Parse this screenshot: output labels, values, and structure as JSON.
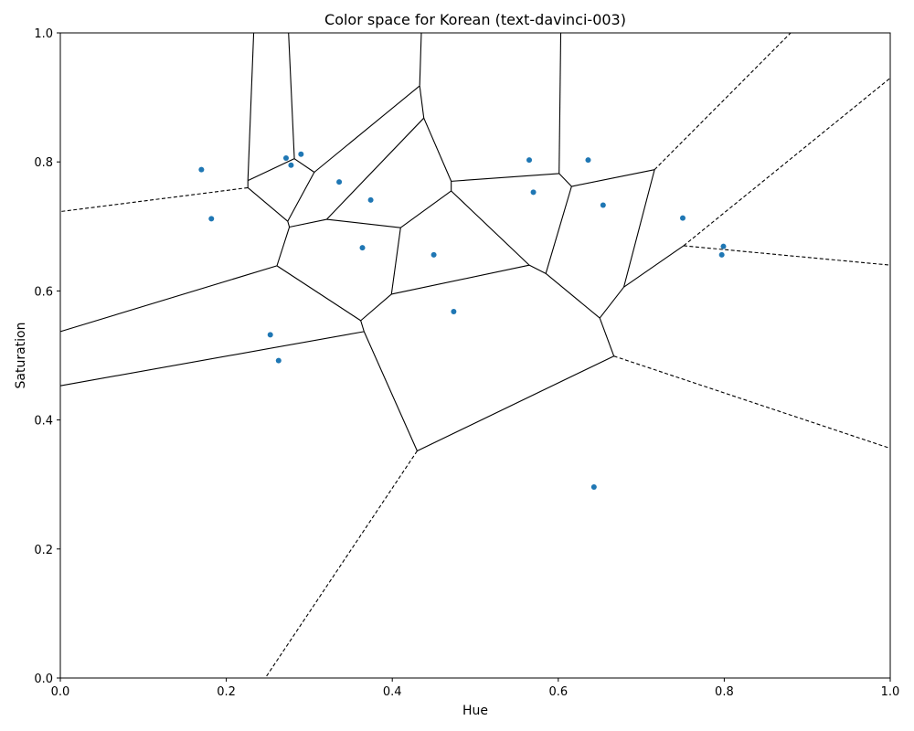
{
  "chart_data": {
    "type": "scatter",
    "title": "Color space for Korean (text-davinci-003)",
    "xlabel": "Hue",
    "ylabel": "Saturation",
    "xlim": [
      0.0,
      1.0
    ],
    "ylim": [
      0.0,
      1.0
    ],
    "xticks": [
      "0.0",
      "0.2",
      "0.4",
      "0.6",
      "0.8",
      "1.0"
    ],
    "yticks": [
      "0.0",
      "0.2",
      "0.4",
      "0.6",
      "0.8",
      "1.0"
    ],
    "grid": false,
    "legend": "none",
    "colors": {
      "points": "#1f77b4",
      "edges": "#000000"
    },
    "series": [
      {
        "x": [
          0.17,
          0.182,
          0.272,
          0.278,
          0.29,
          0.336,
          0.374,
          0.364,
          0.45,
          0.474,
          0.253,
          0.263,
          0.565,
          0.57,
          0.636,
          0.654,
          0.75,
          0.797,
          0.799,
          0.643
        ],
        "y": [
          0.788,
          0.712,
          0.806,
          0.795,
          0.812,
          0.769,
          0.741,
          0.667,
          0.656,
          0.568,
          0.532,
          0.492,
          0.803,
          0.753,
          0.803,
          0.733,
          0.713,
          0.656,
          0.669,
          0.296
        ]
      }
    ],
    "voronoi_edges": {
      "solid": [
        [
          [
            0.233,
            1.0
          ],
          [
            0.226,
            0.771
          ]
        ],
        [
          [
            0.275,
            1.0
          ],
          [
            0.282,
            0.805
          ]
        ],
        [
          [
            0.226,
            0.771
          ],
          [
            0.282,
            0.805
          ]
        ],
        [
          [
            0.226,
            0.771
          ],
          [
            0.226,
            0.76
          ]
        ],
        [
          [
            0.226,
            0.76
          ],
          [
            0.274,
            0.708
          ]
        ],
        [
          [
            0.282,
            0.805
          ],
          [
            0.306,
            0.784
          ]
        ],
        [
          [
            0.306,
            0.784
          ],
          [
            0.433,
            0.918
          ]
        ],
        [
          [
            0.306,
            0.784
          ],
          [
            0.274,
            0.708
          ]
        ],
        [
          [
            0.274,
            0.708
          ],
          [
            0.276,
            0.699
          ]
        ],
        [
          [
            0.276,
            0.699
          ],
          [
            0.321,
            0.711
          ]
        ],
        [
          [
            0.276,
            0.699
          ],
          [
            0.261,
            0.639
          ]
        ],
        [
          [
            0.321,
            0.711
          ],
          [
            0.438,
            0.868
          ]
        ],
        [
          [
            0.321,
            0.711
          ],
          [
            0.41,
            0.698
          ]
        ],
        [
          [
            0.433,
            0.918
          ],
          [
            0.435,
            1.0
          ]
        ],
        [
          [
            0.433,
            0.918
          ],
          [
            0.438,
            0.868
          ]
        ],
        [
          [
            0.438,
            0.868
          ],
          [
            0.471,
            0.77
          ]
        ],
        [
          [
            0.471,
            0.77
          ],
          [
            0.471,
            0.755
          ]
        ],
        [
          [
            0.471,
            0.77
          ],
          [
            0.601,
            0.782
          ]
        ],
        [
          [
            0.471,
            0.755
          ],
          [
            0.41,
            0.698
          ]
        ],
        [
          [
            0.471,
            0.755
          ],
          [
            0.565,
            0.64
          ]
        ],
        [
          [
            0.41,
            0.698
          ],
          [
            0.399,
            0.595
          ]
        ],
        [
          [
            0.399,
            0.595
          ],
          [
            0.565,
            0.64
          ]
        ],
        [
          [
            0.399,
            0.595
          ],
          [
            0.362,
            0.554
          ]
        ],
        [
          [
            0.601,
            0.782
          ],
          [
            0.603,
            1.0
          ]
        ],
        [
          [
            0.601,
            0.782
          ],
          [
            0.616,
            0.762
          ]
        ],
        [
          [
            0.616,
            0.762
          ],
          [
            0.716,
            0.788
          ]
        ],
        [
          [
            0.616,
            0.762
          ],
          [
            0.585,
            0.627
          ]
        ],
        [
          [
            0.565,
            0.64
          ],
          [
            0.585,
            0.627
          ]
        ],
        [
          [
            0.585,
            0.627
          ],
          [
            0.65,
            0.558
          ]
        ],
        [
          [
            0.716,
            0.788
          ],
          [
            0.679,
            0.606
          ]
        ],
        [
          [
            0.679,
            0.606
          ],
          [
            0.751,
            0.67
          ]
        ],
        [
          [
            0.679,
            0.606
          ],
          [
            0.65,
            0.558
          ]
        ],
        [
          [
            0.65,
            0.558
          ],
          [
            0.667,
            0.499
          ]
        ],
        [
          [
            0.667,
            0.499
          ],
          [
            0.43,
            0.352
          ]
        ],
        [
          [
            0.43,
            0.352
          ],
          [
            0.366,
            0.537
          ]
        ],
        [
          [
            0.366,
            0.537
          ],
          [
            0.362,
            0.554
          ]
        ],
        [
          [
            0.366,
            0.537
          ],
          [
            0.0,
            0.453
          ]
        ],
        [
          [
            0.362,
            0.554
          ],
          [
            0.261,
            0.639
          ]
        ],
        [
          [
            0.261,
            0.639
          ],
          [
            0.0,
            0.537
          ]
        ]
      ],
      "dashed": [
        [
          [
            0.226,
            0.76
          ],
          [
            0.0,
            0.723
          ]
        ],
        [
          [
            0.716,
            0.788
          ],
          [
            0.88,
            1.0
          ]
        ],
        [
          [
            0.751,
            0.67
          ],
          [
            1.0,
            0.93
          ]
        ],
        [
          [
            0.751,
            0.67
          ],
          [
            1.0,
            0.64
          ]
        ],
        [
          [
            0.667,
            0.499
          ],
          [
            1.0,
            0.356
          ]
        ],
        [
          [
            0.43,
            0.352
          ],
          [
            0.247,
            0.0
          ]
        ]
      ]
    }
  }
}
